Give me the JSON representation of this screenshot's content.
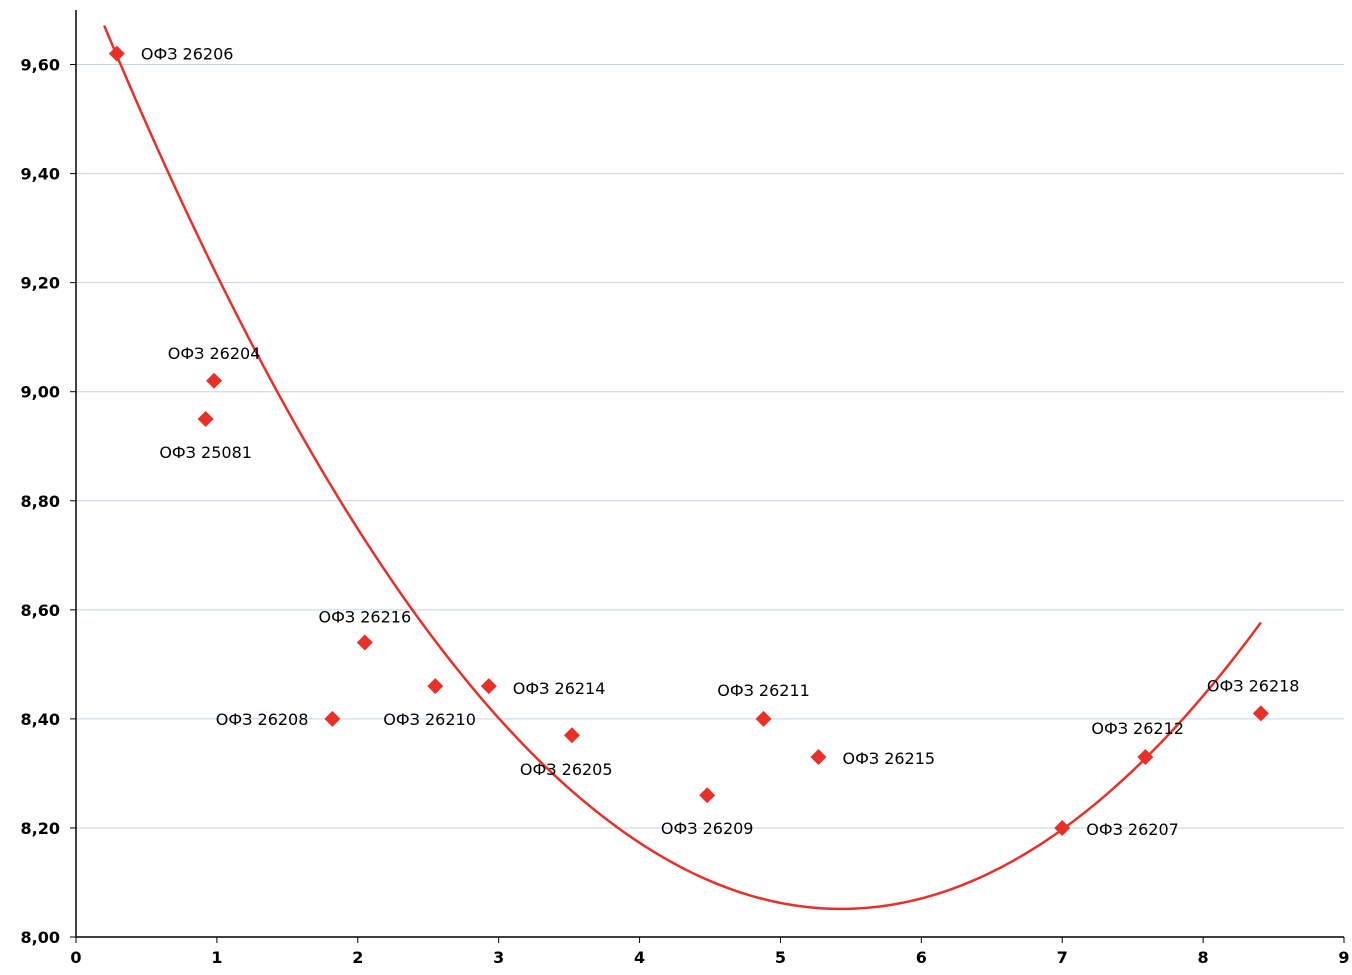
{
  "chart_data": {
    "type": "scatter",
    "title": "",
    "xlabel": "",
    "ylabel": "",
    "xlim": [
      0,
      9
    ],
    "ylim": [
      8.0,
      9.7
    ],
    "x_ticks": [
      0,
      1,
      2,
      3,
      4,
      5,
      6,
      7,
      8,
      9
    ],
    "x_tick_labels": [
      "0",
      "1",
      "2",
      "3",
      "4",
      "5",
      "6",
      "7",
      "8",
      "9"
    ],
    "y_ticks": [
      8.0,
      8.2,
      8.4,
      8.6,
      8.8,
      9.0,
      9.2,
      9.4,
      9.6
    ],
    "y_tick_labels": [
      "8,00",
      "8,20",
      "8,40",
      "8,60",
      "8,80",
      "9,00",
      "9,20",
      "9,40",
      "9,60"
    ],
    "grid": "horizontal",
    "legend": "none",
    "colors": {
      "points": "#e8302a",
      "trend": "#e8302a",
      "grid": "#c8d3e0",
      "axis": "#000000"
    },
    "points": [
      {
        "label": "ОФЗ 26206",
        "x": 0.29,
        "y": 9.62
      },
      {
        "label": "ОФЗ 26204",
        "x": 0.98,
        "y": 9.02
      },
      {
        "label": "ОФЗ 25081",
        "x": 0.92,
        "y": 8.95
      },
      {
        "label": "ОФЗ 26216",
        "x": 2.05,
        "y": 8.54
      },
      {
        "label": "ОФЗ 26208",
        "x": 1.82,
        "y": 8.4
      },
      {
        "label": "ОФЗ 26210",
        "x": 2.55,
        "y": 8.46
      },
      {
        "label": "ОФЗ 26214",
        "x": 2.93,
        "y": 8.46
      },
      {
        "label": "ОФЗ 26205",
        "x": 3.52,
        "y": 8.37
      },
      {
        "label": "ОФЗ 26209",
        "x": 4.48,
        "y": 8.26
      },
      {
        "label": "ОФЗ 26211",
        "x": 4.88,
        "y": 8.4
      },
      {
        "label": "ОФЗ 26215",
        "x": 5.27,
        "y": 8.33
      },
      {
        "label": "ОФЗ 26207",
        "x": 7.0,
        "y": 8.2
      },
      {
        "label": "ОФЗ 26212",
        "x": 7.59,
        "y": 8.33
      },
      {
        "label": "ОФЗ 26218",
        "x": 8.41,
        "y": 8.41
      }
    ],
    "trendline": {
      "type": "polynomial-2",
      "coefficients": [
        9.7977,
        -0.64304,
        0.0592
      ],
      "x_range": [
        0.2,
        8.41
      ]
    }
  }
}
